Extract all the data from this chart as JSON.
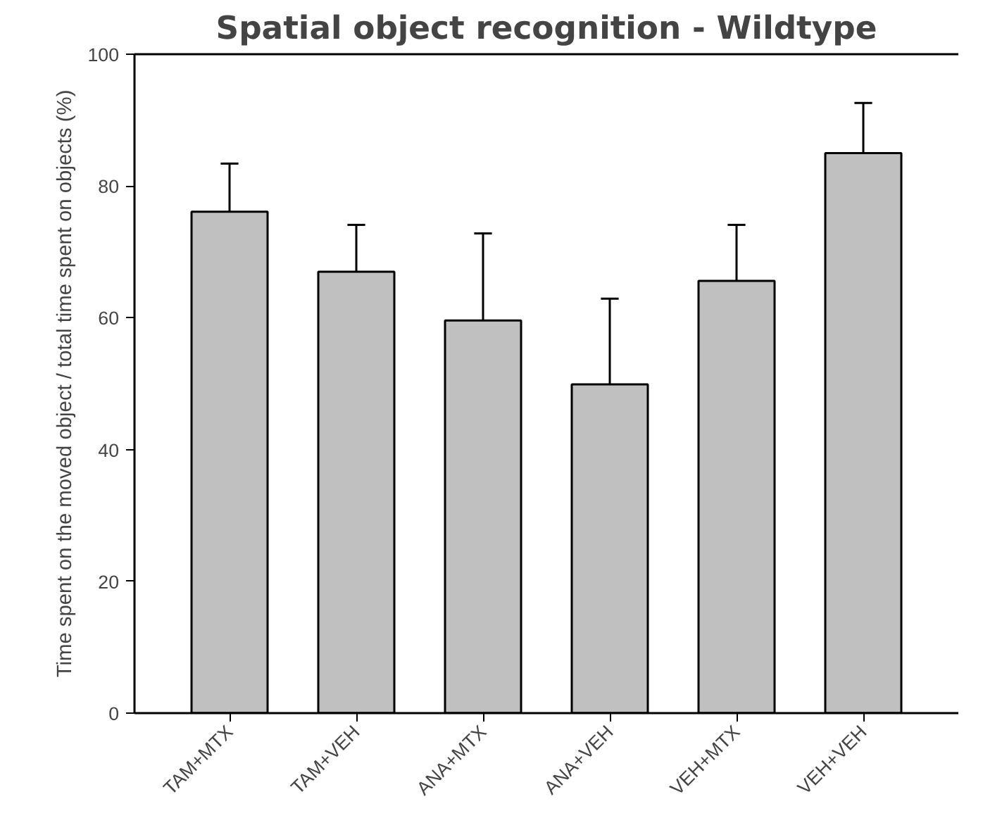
{
  "chart_data": {
    "type": "bar",
    "title": "Spatial object recognition - Wildtype",
    "ylabel": "Time spent on the moved object / total time spent on objects (%)",
    "categories": [
      "TAM+MTX",
      "TAM+VEH",
      "ANA+MTX",
      "ANA+VEH",
      "VEH+MTX",
      "VEH+VEH"
    ],
    "values": [
      76.1,
      67.0,
      59.6,
      49.9,
      65.6,
      85.0
    ],
    "errors": [
      [
        76.1,
        83.4
      ],
      [
        67.0,
        74.1
      ],
      [
        59.6,
        72.8
      ],
      [
        49.9,
        62.9
      ],
      [
        65.6,
        74.1
      ],
      [
        85.0,
        92.6
      ]
    ],
    "color": "#c0c0c0",
    "ylim": [
      0,
      100
    ],
    "yticks": [
      0,
      20,
      40,
      60,
      80,
      100
    ],
    "grid": false
  }
}
